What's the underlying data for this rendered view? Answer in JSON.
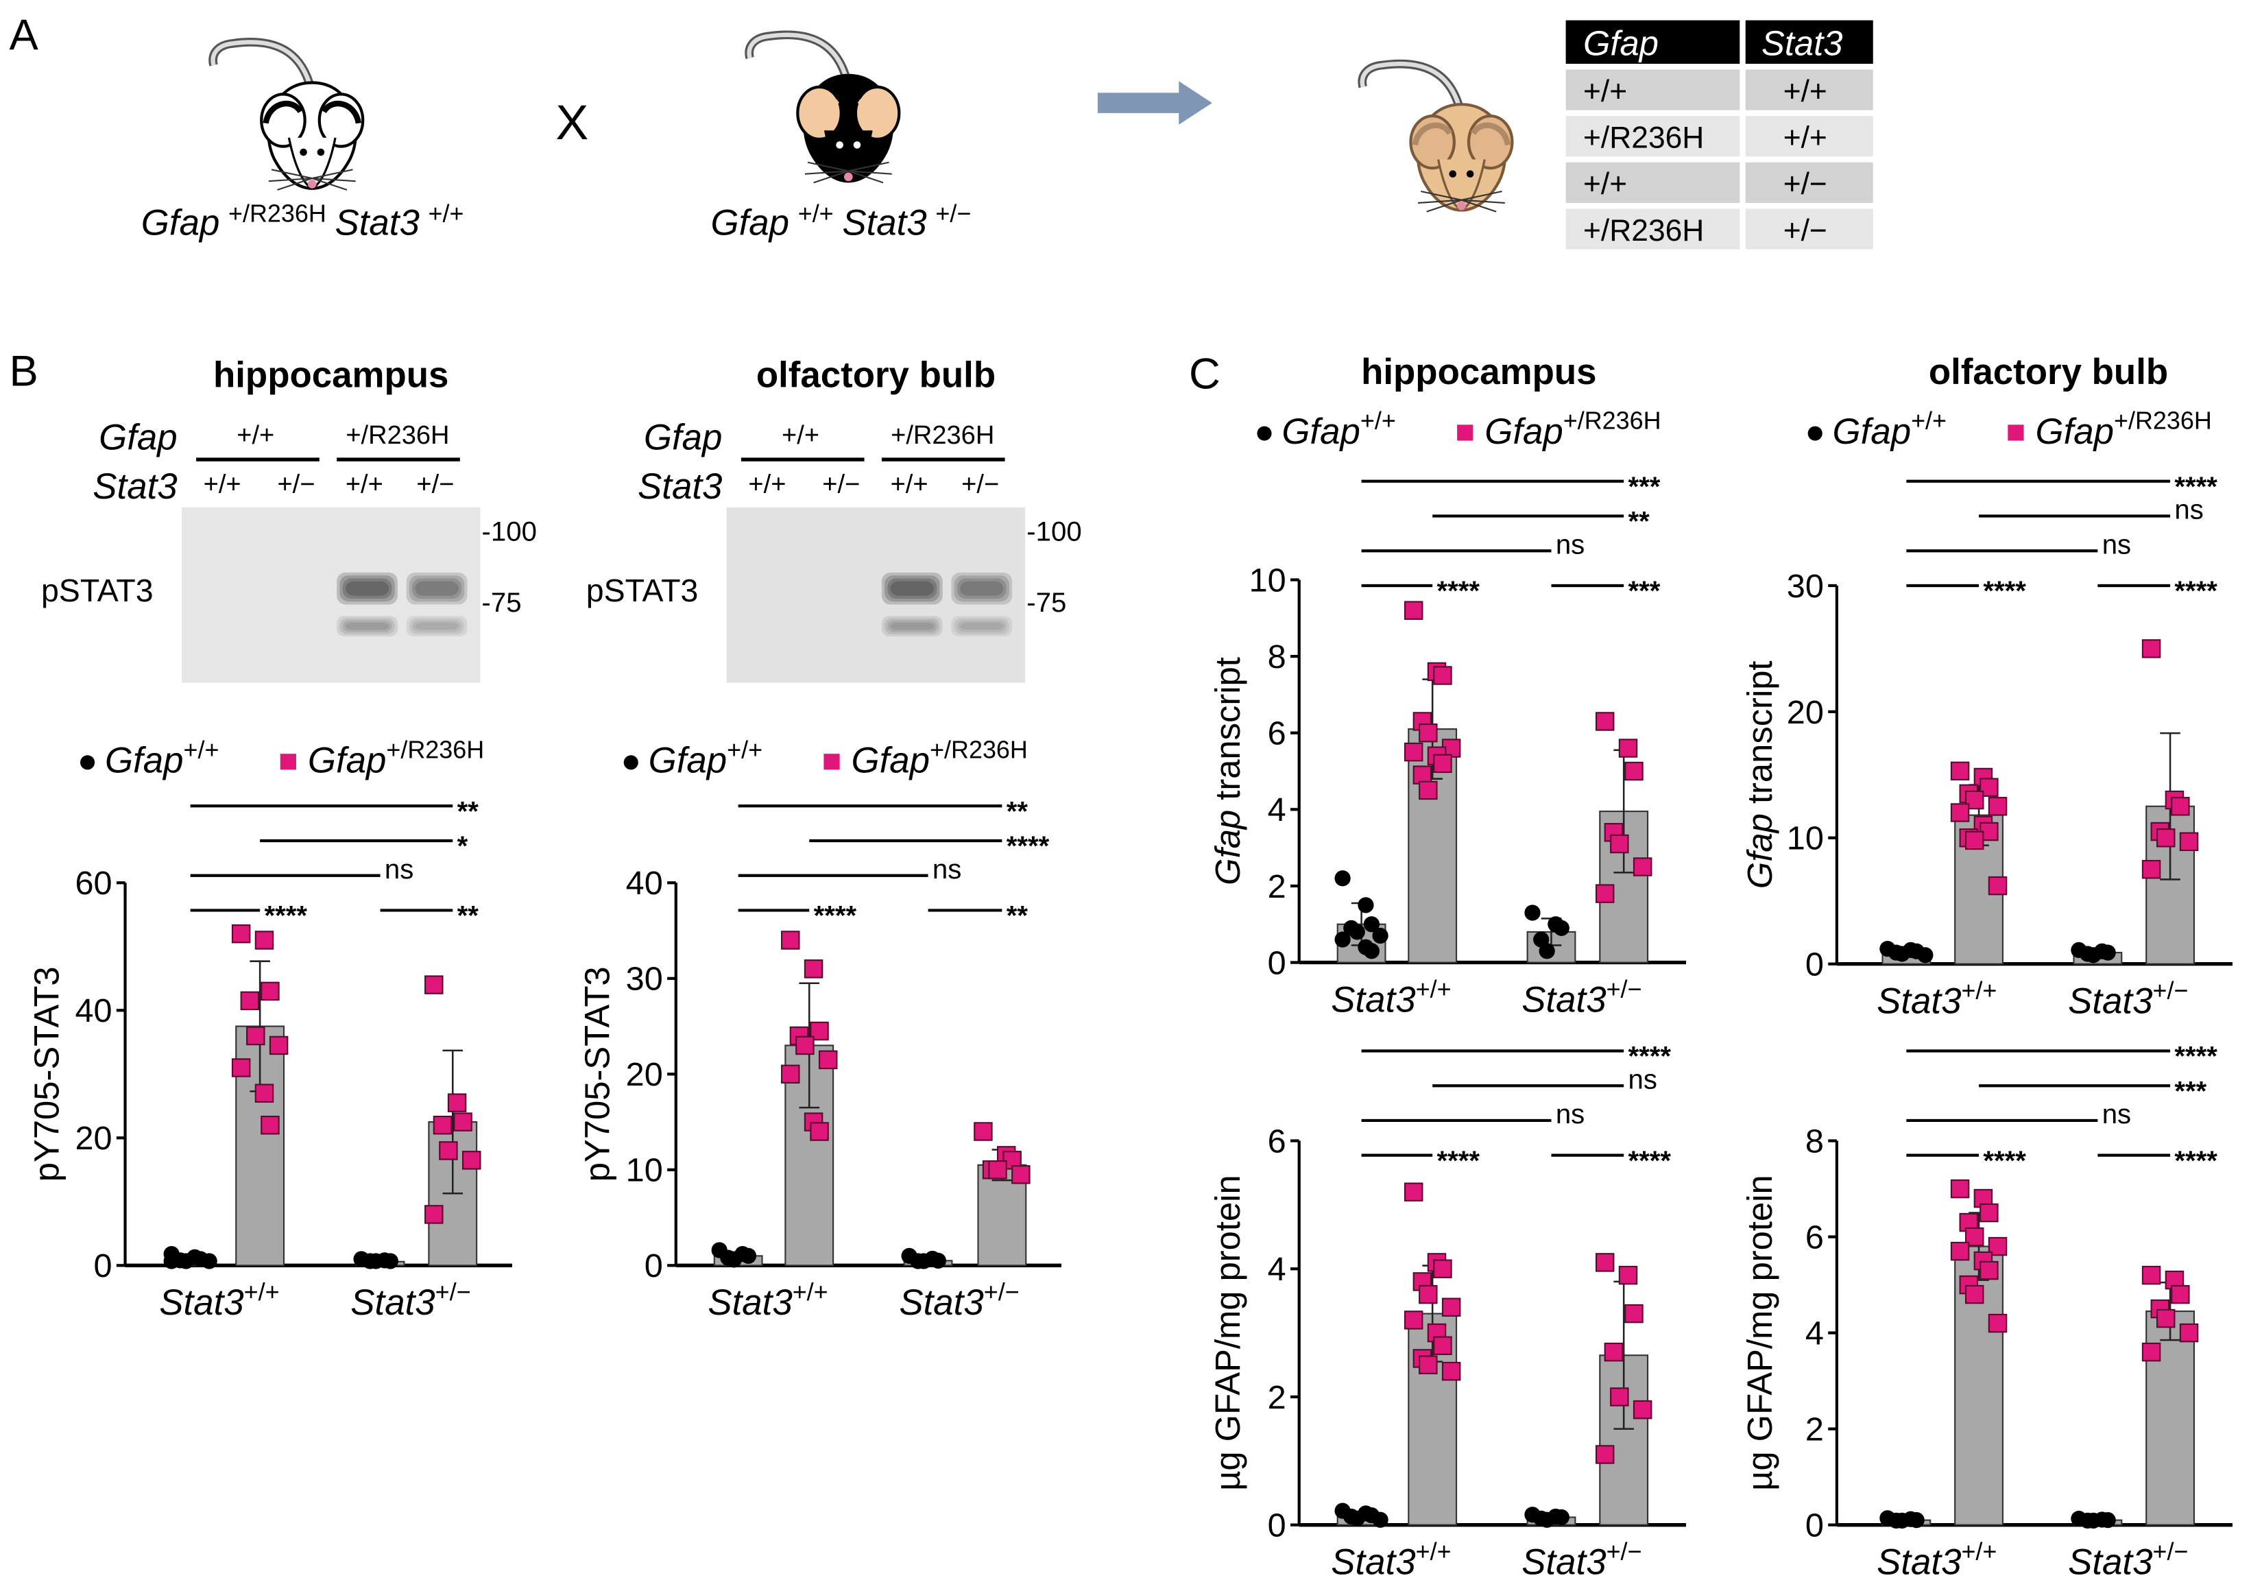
{
  "panel_letters": {
    "a": "A",
    "b": "B",
    "c": "C"
  },
  "panel_a": {
    "parent1": {
      "gene1": "Gfap",
      "sup1": "+/R236H",
      "gene2": "Stat3",
      "sup2": "+/+"
    },
    "cross_symbol": "X",
    "parent2": {
      "gene1": "Gfap",
      "sup1": "+/+",
      "gene2": "Stat3",
      "sup2": "+/−"
    },
    "table": {
      "headers": [
        "Gfap",
        "Stat3"
      ],
      "rows": [
        [
          "+/+",
          "+/+"
        ],
        [
          "+/R236H",
          "+/+"
        ],
        [
          "+/+",
          "+/−"
        ],
        [
          "+/R236H",
          "+/−"
        ]
      ]
    },
    "colors": {
      "mouse_white": "#ffffff",
      "mouse_black": "#000000",
      "mouse_tan": "#e9c08f",
      "arrow": "#8096b5"
    }
  },
  "panel_b_blots": [
    {
      "title": "hippocampus",
      "gfap_label": "Gfap",
      "stat3_label": "Stat3",
      "gfap_groups": [
        "+/+",
        "+/R236H"
      ],
      "lanes": [
        "+/+",
        "+/−",
        "+/+",
        "+/−"
      ],
      "band_label": "pSTAT3",
      "markers": [
        "-100",
        "-75"
      ]
    },
    {
      "title": "olfactory bulb",
      "gfap_label": "Gfap",
      "stat3_label": "Stat3",
      "gfap_groups": [
        "+/+",
        "+/R236H"
      ],
      "lanes": [
        "+/+",
        "+/−",
        "+/+",
        "+/−"
      ],
      "band_label": "pSTAT3",
      "markers": [
        "-100",
        "-75"
      ]
    }
  ],
  "panel_c_titles": [
    "hippocampus",
    "olfactory bulb"
  ],
  "legend": [
    {
      "gene": "Gfap",
      "sup": "+/+",
      "marker": "circle",
      "color": "#000000"
    },
    {
      "gene": "Gfap",
      "sup": "+/R236H",
      "marker": "square",
      "color": "#e0177a"
    }
  ],
  "colors": {
    "bar": "#a8a8a8",
    "mutant": "#e0177a",
    "wildtype": "#000000"
  },
  "chart_data": [
    {
      "type": "bar",
      "panel": "B",
      "region": "hippocampus",
      "ylabel": {
        "italic": "",
        "rest": "pY705-STAT3"
      },
      "ylim": [
        0,
        60
      ],
      "yticks": [
        "0",
        "20",
        "40",
        "60"
      ],
      "x_groups": [
        {
          "gene": "Stat3",
          "sup": "+/+"
        },
        {
          "gene": "Stat3",
          "sup": "+/−"
        }
      ],
      "groups": [
        {
          "stat3": "+/+",
          "gfap": "+/+",
          "mean": 1.0,
          "sd": 0.4,
          "points": [
            1.8,
            1.3,
            1.0,
            0.8,
            0.6,
            0.5,
            0.3
          ]
        },
        {
          "stat3": "+/+",
          "gfap": "+/R236H",
          "mean": 37.5,
          "sd": 10.2,
          "points": [
            52,
            51,
            43,
            41.5,
            36,
            34.5,
            31,
            27,
            22
          ]
        },
        {
          "stat3": "+/−",
          "gfap": "+/+",
          "mean": 0.6,
          "sd": 0.3,
          "points": [
            1.0,
            0.8,
            0.6,
            0.4,
            0.2
          ]
        },
        {
          "stat3": "+/−",
          "gfap": "+/R236H",
          "mean": 22.5,
          "sd": 11.2,
          "points": [
            44,
            25.5,
            22.5,
            22,
            18,
            16.5,
            8
          ]
        }
      ],
      "significance": [
        {
          "from": 0,
          "to": 3,
          "label": "**"
        },
        {
          "from": 1,
          "to": 3,
          "label": "*"
        },
        {
          "from": 0,
          "to": 2,
          "label": "ns"
        },
        {
          "from": 0,
          "to": 1,
          "label": "****"
        },
        {
          "from": 2,
          "to": 3,
          "label": "**"
        }
      ]
    },
    {
      "type": "bar",
      "panel": "B",
      "region": "olfactory bulb",
      "ylabel": {
        "italic": "",
        "rest": "pY705-STAT3"
      },
      "ylim": [
        0,
        40
      ],
      "yticks": [
        "0",
        "10",
        "20",
        "30",
        "40"
      ],
      "x_groups": [
        {
          "gene": "Stat3",
          "sup": "+/+"
        },
        {
          "gene": "Stat3",
          "sup": "+/−"
        }
      ],
      "groups": [
        {
          "stat3": "+/+",
          "gfap": "+/+",
          "mean": 1.0,
          "sd": 0.4,
          "points": [
            1.6,
            1.2,
            1.0,
            0.8,
            0.6
          ]
        },
        {
          "stat3": "+/+",
          "gfap": "+/R236H",
          "mean": 23,
          "sd": 6.5,
          "points": [
            34,
            31,
            24.5,
            24,
            23,
            21.5,
            20,
            15,
            14
          ]
        },
        {
          "stat3": "+/−",
          "gfap": "+/+",
          "mean": 0.5,
          "sd": 0.3,
          "points": [
            1.0,
            0.7,
            0.5,
            0.3,
            0.2
          ]
        },
        {
          "stat3": "+/−",
          "gfap": "+/R236H",
          "mean": 10.5,
          "sd": 1.6,
          "points": [
            14,
            11.5,
            11,
            10,
            10,
            9.5
          ]
        }
      ],
      "significance": [
        {
          "from": 0,
          "to": 3,
          "label": "**"
        },
        {
          "from": 1,
          "to": 3,
          "label": "****"
        },
        {
          "from": 0,
          "to": 2,
          "label": "ns"
        },
        {
          "from": 0,
          "to": 1,
          "label": "****"
        },
        {
          "from": 2,
          "to": 3,
          "label": "**"
        }
      ]
    },
    {
      "type": "bar",
      "panel": "C",
      "region": "hippocampus",
      "ylabel": {
        "italic": "Gfap",
        "rest": " transcript"
      },
      "ylim": [
        0,
        10
      ],
      "yticks": [
        "0",
        "2",
        "4",
        "6",
        "8",
        "10"
      ],
      "x_groups": [
        {
          "gene": "Stat3",
          "sup": "+/+"
        },
        {
          "gene": "Stat3",
          "sup": "+/−"
        }
      ],
      "groups": [
        {
          "stat3": "+/+",
          "gfap": "+/+",
          "mean": 1.0,
          "sd": 0.55,
          "points": [
            2.2,
            1.5,
            1.0,
            0.9,
            0.8,
            0.7,
            0.6,
            0.4,
            0.3
          ]
        },
        {
          "stat3": "+/+",
          "gfap": "+/R236H",
          "mean": 6.1,
          "sd": 1.3,
          "points": [
            9.2,
            7.6,
            7.5,
            6.3,
            6.0,
            5.6,
            5.5,
            5.4,
            5.2,
            4.9,
            4.5
          ]
        },
        {
          "stat3": "+/−",
          "gfap": "+/+",
          "mean": 0.8,
          "sd": 0.35,
          "points": [
            1.3,
            1.0,
            0.9,
            0.6,
            0.3
          ]
        },
        {
          "stat3": "+/−",
          "gfap": "+/R236H",
          "mean": 3.95,
          "sd": 1.6,
          "points": [
            6.3,
            5.6,
            5.0,
            3.4,
            3.1,
            2.5,
            1.8
          ]
        }
      ],
      "significance": [
        {
          "from": 0,
          "to": 3,
          "label": "***"
        },
        {
          "from": 1,
          "to": 3,
          "label": "**"
        },
        {
          "from": 0,
          "to": 2,
          "label": "ns"
        },
        {
          "from": 0,
          "to": 1,
          "label": "****"
        },
        {
          "from": 2,
          "to": 3,
          "label": "***"
        }
      ]
    },
    {
      "type": "bar",
      "panel": "C",
      "region": "olfactory bulb",
      "ylabel": {
        "italic": "Gfap",
        "rest": " transcript"
      },
      "ylim": [
        0,
        30
      ],
      "yticks": [
        "0",
        "10",
        "20",
        "30"
      ],
      "x_groups": [
        {
          "gene": "Stat3",
          "sup": "+/+"
        },
        {
          "gene": "Stat3",
          "sup": "+/−"
        }
      ],
      "groups": [
        {
          "stat3": "+/+",
          "gfap": "+/+",
          "mean": 1.0,
          "sd": 0.2,
          "points": [
            1.2,
            1.1,
            1.0,
            0.9,
            0.8,
            0.7
          ]
        },
        {
          "stat3": "+/+",
          "gfap": "+/R236H",
          "mean": 11.8,
          "sd": 2.4,
          "points": [
            15.3,
            14.8,
            14,
            13.5,
            13,
            12.5,
            12,
            11,
            10.5,
            10,
            9.8,
            6.2
          ]
        },
        {
          "stat3": "+/−",
          "gfap": "+/+",
          "mean": 0.9,
          "sd": 0.2,
          "points": [
            1.1,
            1.0,
            0.9,
            0.8,
            0.7
          ]
        },
        {
          "stat3": "+/−",
          "gfap": "+/R236H",
          "mean": 12.5,
          "sd": 5.8,
          "points": [
            25,
            13,
            12.5,
            10.5,
            10,
            9.7,
            7.5
          ]
        }
      ],
      "significance": [
        {
          "from": 0,
          "to": 3,
          "label": "****"
        },
        {
          "from": 1,
          "to": 3,
          "label": "ns"
        },
        {
          "from": 0,
          "to": 2,
          "label": "ns"
        },
        {
          "from": 0,
          "to": 1,
          "label": "****"
        },
        {
          "from": 2,
          "to": 3,
          "label": "****"
        }
      ]
    },
    {
      "type": "bar",
      "panel": "C",
      "region": "hippocampus",
      "ylabel": {
        "italic": "",
        "rest": "µg GFAP/mg protein"
      },
      "ylim": [
        0,
        6
      ],
      "yticks": [
        "0",
        "2",
        "4",
        "6"
      ],
      "x_groups": [
        {
          "gene": "Stat3",
          "sup": "+/+"
        },
        {
          "gene": "Stat3",
          "sup": "+/−"
        }
      ],
      "groups": [
        {
          "stat3": "+/+",
          "gfap": "+/+",
          "mean": 0.15,
          "sd": 0.05,
          "points": [
            0.22,
            0.18,
            0.15,
            0.13,
            0.1,
            0.08
          ]
        },
        {
          "stat3": "+/+",
          "gfap": "+/R236H",
          "mean": 3.3,
          "sd": 0.75,
          "points": [
            5.2,
            4.1,
            4.0,
            3.8,
            3.6,
            3.4,
            3.2,
            3.0,
            2.8,
            2.6,
            2.5,
            2.4
          ]
        },
        {
          "stat3": "+/−",
          "gfap": "+/+",
          "mean": 0.12,
          "sd": 0.04,
          "points": [
            0.16,
            0.13,
            0.12,
            0.1,
            0.08
          ]
        },
        {
          "stat3": "+/−",
          "gfap": "+/R236H",
          "mean": 2.65,
          "sd": 1.15,
          "points": [
            4.1,
            3.9,
            3.3,
            2.7,
            2.0,
            1.8,
            1.1
          ]
        }
      ],
      "significance": [
        {
          "from": 0,
          "to": 3,
          "label": "****"
        },
        {
          "from": 1,
          "to": 3,
          "label": "ns"
        },
        {
          "from": 0,
          "to": 2,
          "label": "ns"
        },
        {
          "from": 0,
          "to": 1,
          "label": "****"
        },
        {
          "from": 2,
          "to": 3,
          "label": "****"
        }
      ]
    },
    {
      "type": "bar",
      "panel": "C",
      "region": "olfactory bulb",
      "ylabel": {
        "italic": "",
        "rest": "µg GFAP/mg protein"
      },
      "ylim": [
        0,
        8
      ],
      "yticks": [
        "0",
        "2",
        "4",
        "6",
        "8"
      ],
      "x_groups": [
        {
          "gene": "Stat3",
          "sup": "+/+"
        },
        {
          "gene": "Stat3",
          "sup": "+/−"
        }
      ],
      "groups": [
        {
          "stat3": "+/+",
          "gfap": "+/+",
          "mean": 0.1,
          "sd": 0.03,
          "points": [
            0.14,
            0.12,
            0.1,
            0.08,
            0.06
          ]
        },
        {
          "stat3": "+/+",
          "gfap": "+/R236H",
          "mean": 5.8,
          "sd": 0.7,
          "points": [
            7.0,
            6.8,
            6.5,
            6.3,
            6.0,
            5.8,
            5.7,
            5.5,
            5.3,
            5.0,
            4.8,
            4.2
          ]
        },
        {
          "stat3": "+/−",
          "gfap": "+/+",
          "mean": 0.1,
          "sd": 0.03,
          "points": [
            0.13,
            0.11,
            0.1,
            0.08,
            0.06
          ]
        },
        {
          "stat3": "+/−",
          "gfap": "+/R236H",
          "mean": 4.45,
          "sd": 0.6,
          "points": [
            5.2,
            5.1,
            4.8,
            4.5,
            4.3,
            4.0,
            3.6
          ]
        }
      ],
      "significance": [
        {
          "from": 0,
          "to": 3,
          "label": "****"
        },
        {
          "from": 1,
          "to": 3,
          "label": "***"
        },
        {
          "from": 0,
          "to": 2,
          "label": "ns"
        },
        {
          "from": 0,
          "to": 1,
          "label": "****"
        },
        {
          "from": 2,
          "to": 3,
          "label": "****"
        }
      ]
    }
  ]
}
